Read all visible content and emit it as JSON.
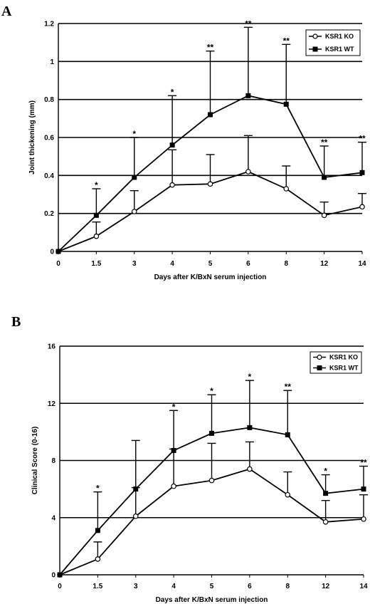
{
  "chart_data": [
    {
      "panel": "A",
      "type": "line",
      "xlabel": "Days after K/BxN serum injection",
      "ylabel": "Joint thickening (mm)",
      "categories": [
        "0",
        "1.5",
        "3",
        "4",
        "5",
        "6",
        "8",
        "12",
        "14"
      ],
      "ylim": [
        0,
        1.2
      ],
      "yticks": [
        "0",
        "0.2",
        "0.4",
        "0.6",
        "0.8",
        "1",
        "1.2"
      ],
      "grid": "horizontal",
      "legend_position": "top-right",
      "series": [
        {
          "name": "KSR1 KO",
          "marker": "open-circle",
          "values": [
            0,
            0.08,
            0.21,
            0.35,
            0.355,
            0.42,
            0.33,
            0.19,
            0.235
          ],
          "err": [
            0,
            0.075,
            0.11,
            0.185,
            0.155,
            0.19,
            0.12,
            0.07,
            0.07
          ]
        },
        {
          "name": "KSR1 WT",
          "marker": "filled-square",
          "values": [
            0,
            0.19,
            0.39,
            0.56,
            0.72,
            0.82,
            0.775,
            0.39,
            0.415
          ],
          "err": [
            0,
            0.14,
            0.21,
            0.26,
            0.335,
            0.36,
            0.315,
            0.165,
            0.16
          ]
        }
      ],
      "significance": [
        "",
        "*",
        "*",
        "*",
        "**",
        "**",
        "**",
        "**",
        "**"
      ]
    },
    {
      "panel": "B",
      "type": "line",
      "xlabel": "Days after K/BxN serum injection",
      "ylabel": "Clinical Score (0-16)",
      "categories": [
        "0",
        "1.5",
        "3",
        "4",
        "5",
        "6",
        "8",
        "12",
        "14"
      ],
      "ylim": [
        0,
        16
      ],
      "yticks": [
        "0",
        "4",
        "8",
        "12",
        "16"
      ],
      "grid": "horizontal",
      "legend_position": "top-right",
      "series": [
        {
          "name": "KSR1 KO",
          "marker": "open-circle",
          "values": [
            0,
            1.1,
            4.1,
            6.2,
            6.6,
            7.4,
            5.6,
            3.7,
            3.9
          ],
          "err": [
            0,
            1.2,
            2.0,
            2.6,
            2.6,
            1.9,
            1.6,
            1.5,
            1.7
          ]
        },
        {
          "name": "KSR1 WT",
          "marker": "filled-square",
          "values": [
            0,
            3.1,
            6.0,
            8.7,
            9.9,
            10.3,
            9.8,
            5.7,
            6.0
          ],
          "err": [
            0,
            2.7,
            3.4,
            2.8,
            2.7,
            3.3,
            3.1,
            1.3,
            1.6
          ]
        }
      ],
      "significance": [
        "",
        "*",
        "",
        "*",
        "*",
        "*",
        "**",
        "*",
        "**"
      ]
    }
  ]
}
